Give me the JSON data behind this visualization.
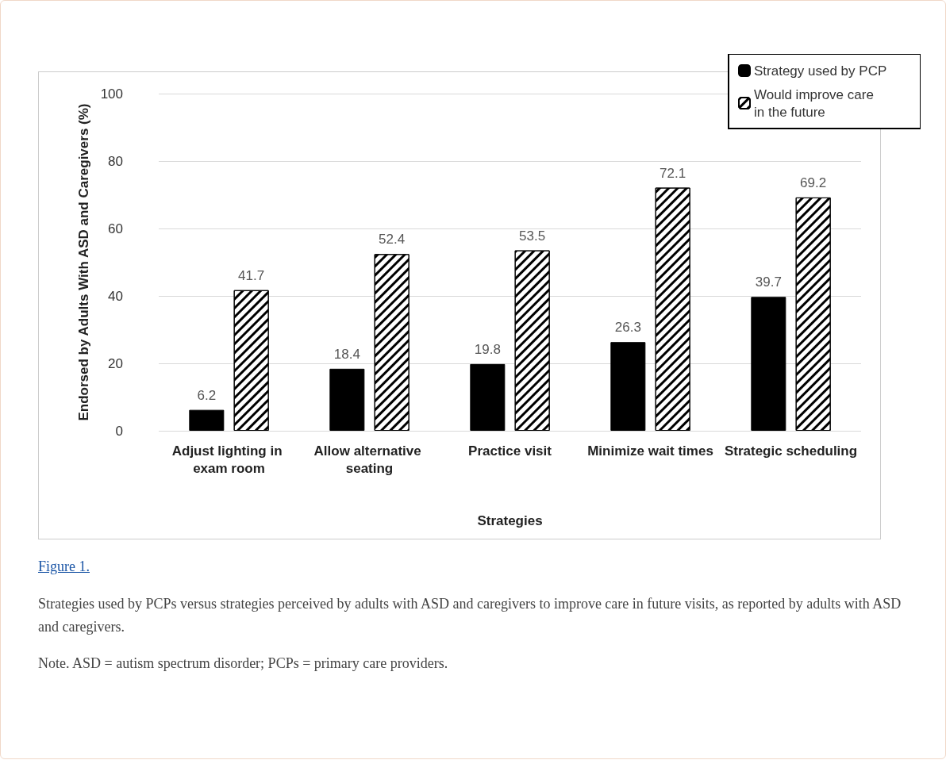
{
  "chart_data": {
    "type": "bar",
    "xlabel": "Strategies",
    "ylabel": "Endorsed by Adults With ASD and Caregivers (%)",
    "categories": [
      "Adjust lighting in exam room",
      "Allow alternative seating",
      "Practice visit",
      "Minimize wait times",
      "Strategic scheduling"
    ],
    "series": [
      {
        "name": "Strategy used by PCP",
        "color": "#000000",
        "values": [
          6.2,
          18.4,
          19.8,
          26.3,
          39.7
        ]
      },
      {
        "name": "Would improve care in the future",
        "color": "#ffffff",
        "values": [
          41.7,
          52.4,
          53.5,
          72.1,
          69.2
        ]
      }
    ],
    "ylim": [
      0,
      100
    ],
    "yticks": [
      0,
      20,
      40,
      60,
      80,
      100
    ],
    "grid": "y",
    "legend": "top right",
    "data_labels": true,
    "annotations": [
      "Figure 1.",
      "Strategies used by PCPs versus strategies perceived by adults with ASD and caregivers to improve care in future visits, as reported by adults with ASD and caregivers.",
      "Note. ASD = autism spectrum disorder; PCPs = primary care providers."
    ]
  }
}
